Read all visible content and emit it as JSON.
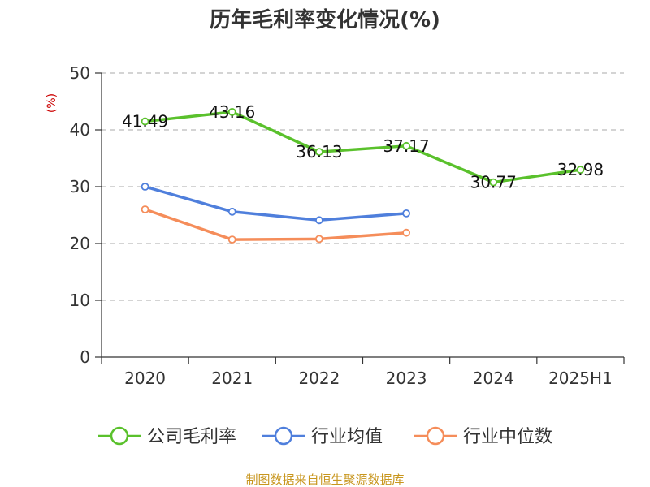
{
  "chart_data": {
    "type": "line",
    "title": "历年毛利率变化情况(%)",
    "ylabel": "(%)",
    "xlabel": "",
    "categories": [
      "2020",
      "2021",
      "2022",
      "2023",
      "2024",
      "2025H1"
    ],
    "ylim": [
      0,
      50
    ],
    "yticks": [
      0,
      10,
      20,
      30,
      40,
      50
    ],
    "grid": true,
    "legend_position": "bottom",
    "series": [
      {
        "name": "公司毛利率",
        "color": "#5ac12c",
        "values": [
          41.49,
          43.16,
          36.13,
          37.17,
          30.77,
          32.98
        ],
        "labels": [
          "41.49",
          "43.16",
          "36.13",
          "37.17",
          "30.77",
          "32.98"
        ]
      },
      {
        "name": "行业均值",
        "color": "#4f7fdc",
        "values": [
          30.0,
          25.6,
          24.1,
          25.3,
          null,
          null
        ]
      },
      {
        "name": "行业中位数",
        "color": "#f58d5a",
        "values": [
          26.0,
          20.7,
          20.8,
          21.9,
          null,
          null
        ]
      }
    ]
  },
  "source": "制图数据来自恒生聚源数据库"
}
